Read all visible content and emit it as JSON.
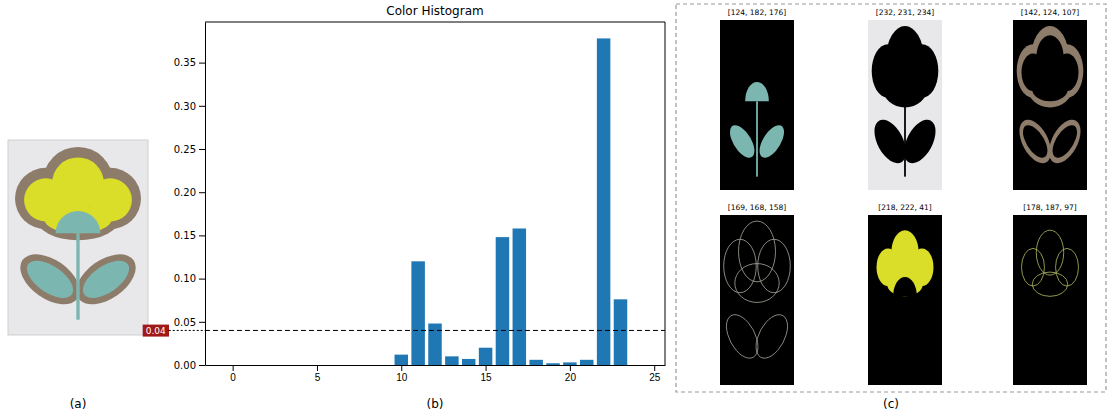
{
  "chart_data": {
    "type": "bar",
    "title": "Color Histogram",
    "x": [
      0,
      1,
      2,
      3,
      4,
      5,
      6,
      7,
      8,
      9,
      10,
      11,
      12,
      13,
      14,
      15,
      16,
      17,
      18,
      19,
      20,
      21,
      22,
      23,
      24
    ],
    "values": [
      0,
      0,
      0,
      0,
      0,
      0,
      0,
      0,
      0,
      0,
      0.012,
      0.12,
      0.048,
      0.01,
      0.007,
      0.02,
      0.148,
      0.158,
      0.006,
      0.002,
      0.003,
      0.006,
      0.378,
      0.076,
      0
    ],
    "color": "#1f77b4",
    "xlim": [
      -1.64,
      25.64
    ],
    "xticks": [
      0,
      5,
      10,
      15,
      20,
      25
    ],
    "ylim": [
      0,
      0.397
    ],
    "yticks": [
      {
        "value": 0,
        "label": "0.00"
      },
      0.05,
      {
        "value": 0.1,
        "label": "0.10"
      },
      0.15,
      {
        "value": 0.2,
        "label": "0.20"
      },
      0.25,
      {
        "value": 0.3,
        "label": "0.30"
      },
      0.35
    ],
    "threshold": 0.04
  },
  "panels": {
    "a": {
      "label": "(a)"
    },
    "b": {
      "label": "(b)"
    },
    "c": {
      "label": "(c)",
      "masks": [
        {
          "label": "[124, 182, 176]",
          "color": "#7cb6b0"
        },
        {
          "label": "[232, 231, 234]",
          "color": "#e8e7ea"
        },
        {
          "label": "[142, 124, 107]",
          "color": "#8e7c6b"
        },
        {
          "label": "[169, 168, 158]",
          "color": "#a9a89e"
        },
        {
          "label": "[218, 222, 41]",
          "color": "#dade29"
        },
        {
          "label": "[178, 187, 97]",
          "color": "#b2bb61"
        }
      ]
    }
  }
}
